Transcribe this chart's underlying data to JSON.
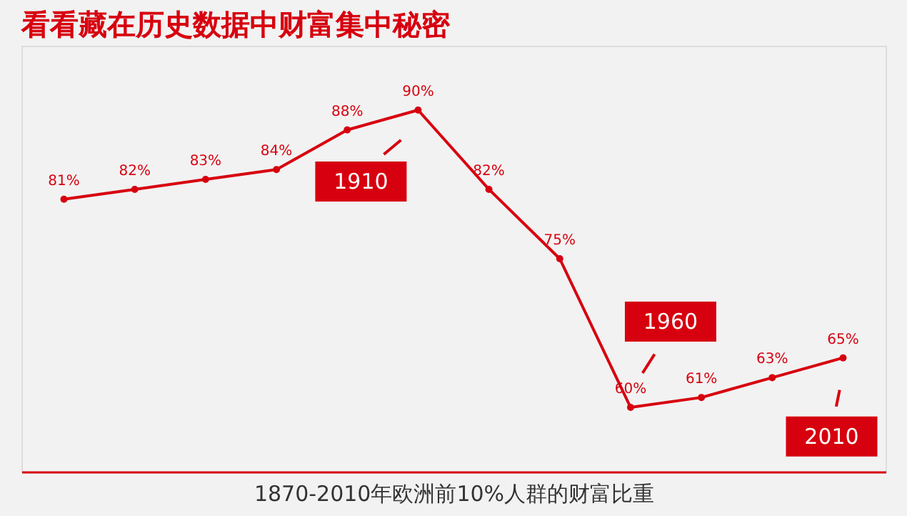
{
  "chart_data": {
    "type": "line",
    "title": "看看藏在历史数据中财富集中秘密",
    "xlabel": "1870-2010年欧洲前10%人群的财富比重",
    "categories": [
      null,
      null,
      null,
      null,
      null,
      null,
      null,
      null,
      null,
      null,
      null,
      null
    ],
    "series": [
      {
        "color": "#d7000f",
        "values": [
          81,
          82,
          83,
          84,
          88,
          90,
          82,
          75,
          60,
          61,
          63,
          65
        ],
        "value_labels": [
          "81%",
          "82%",
          "83%",
          "84%",
          "88%",
          "90%",
          "82%",
          "75%",
          "60%",
          "61%",
          "63%",
          "65%"
        ]
      }
    ],
    "annotations": [
      "1910",
      "1960",
      "2010"
    ],
    "marker": "circle",
    "tick_labels": false,
    "grid": false
  }
}
